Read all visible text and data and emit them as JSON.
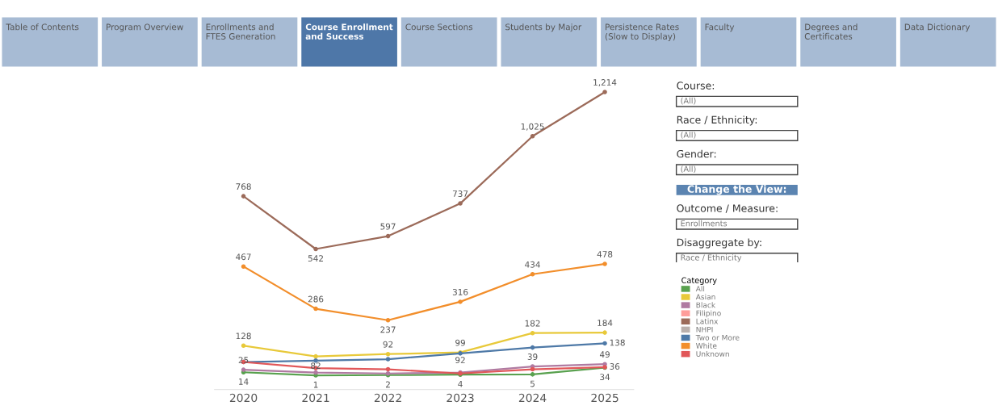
{
  "chart_data": [
    {
      "type": "other",
      "annotations": [
        "Table of Contents",
        "Program Overview",
        "Enrollments and\nFTES Generation",
        "Course Enrollment\nand Success",
        "Course Sections",
        "Students by Major",
        "Persistence Rates\n(Slow to Display)",
        "Faculty",
        "Degrees and\nCertificates",
        "Data Dictionary"
      ],
      "colors": [
        "#a7bbd4",
        "#a7bbd4",
        "#a7bbd4",
        "#4e77a8",
        "#a7bbd4",
        "#a7bbd4",
        "#a7bbd4",
        "#a7bbd4",
        "#a7bbd4",
        "#a7bbd4"
      ]
    },
    {
      "type": "line",
      "categories": [
        "2020",
        "2021",
        "2022",
        "2023",
        "2024",
        "2025"
      ],
      "marker": "circle",
      "line_style": "solid",
      "legend": "right",
      "legend_title": "Category",
      "grid": false,
      "tick_labels": "x",
      "annotations": [
        {
          "text": "92",
          "x": "2023",
          "y": 25
        }
      ],
      "series": [
        {
          "name": "All",
          "color": "#59a14f",
          "values": [
            14,
            1,
            2,
            4,
            5,
            34
          ],
          "value_labels": [
            "14",
            "1",
            "2",
            "4",
            "5",
            "34"
          ]
        },
        {
          "name": "Asian",
          "color": "#e8c93a",
          "values": [
            128,
            82,
            92,
            99,
            182,
            184
          ],
          "value_labels": [
            "128",
            "82",
            "92",
            "99",
            "182",
            "184"
          ]
        },
        {
          "name": "Black",
          "color": "#b07aa1",
          "values": [
            25,
            13,
            9,
            13,
            39,
            49
          ],
          "value_labels": [
            "25",
            null,
            null,
            null,
            "39",
            "49"
          ]
        },
        {
          "name": "Filipino",
          "color": "#ff9d9a",
          "values": [
            null,
            null,
            null,
            null,
            null,
            null
          ]
        },
        {
          "name": "Latinx",
          "color": "#9c6b5a",
          "values": [
            768,
            542,
            597,
            737,
            1025,
            1214
          ],
          "value_labels": [
            "768",
            "542",
            "597",
            "737",
            "1,025",
            "1,214"
          ]
        },
        {
          "name": "NHPI",
          "color": "#bab0ac",
          "values": [
            null,
            null,
            null,
            null,
            null,
            null
          ]
        },
        {
          "name": "Two or More",
          "color": "#4e79a7",
          "values": [
            58,
            64,
            70,
            95,
            120,
            138
          ],
          "value_labels": [
            null,
            null,
            null,
            null,
            null,
            "138"
          ]
        },
        {
          "name": "White",
          "color": "#f28e2b",
          "values": [
            467,
            286,
            237,
            316,
            434,
            478
          ],
          "value_labels": [
            "467",
            "286",
            "237",
            "316",
            "434",
            "478"
          ]
        },
        {
          "name": "Unknown",
          "color": "#e15759",
          "values": [
            58,
            32,
            27,
            9,
            27,
            36
          ],
          "value_labels": [
            null,
            null,
            null,
            null,
            null,
            "36"
          ]
        }
      ]
    },
    {
      "type": "other",
      "annotations": [
        "Course:",
        "(All)",
        "Race / Ethnicity:",
        "(All)",
        "Gender:",
        "(All)",
        "Change the View:",
        "Outcome / Measure:",
        "Enrollments",
        "Disaggregate by:",
        "Race / Ethnicity"
      ],
      "colors": [
        null,
        "#ffffff",
        null,
        "#ffffff",
        null,
        "#ffffff",
        "#5b84b1",
        null,
        "#ffffff",
        null,
        "#ffffff"
      ]
    }
  ]
}
